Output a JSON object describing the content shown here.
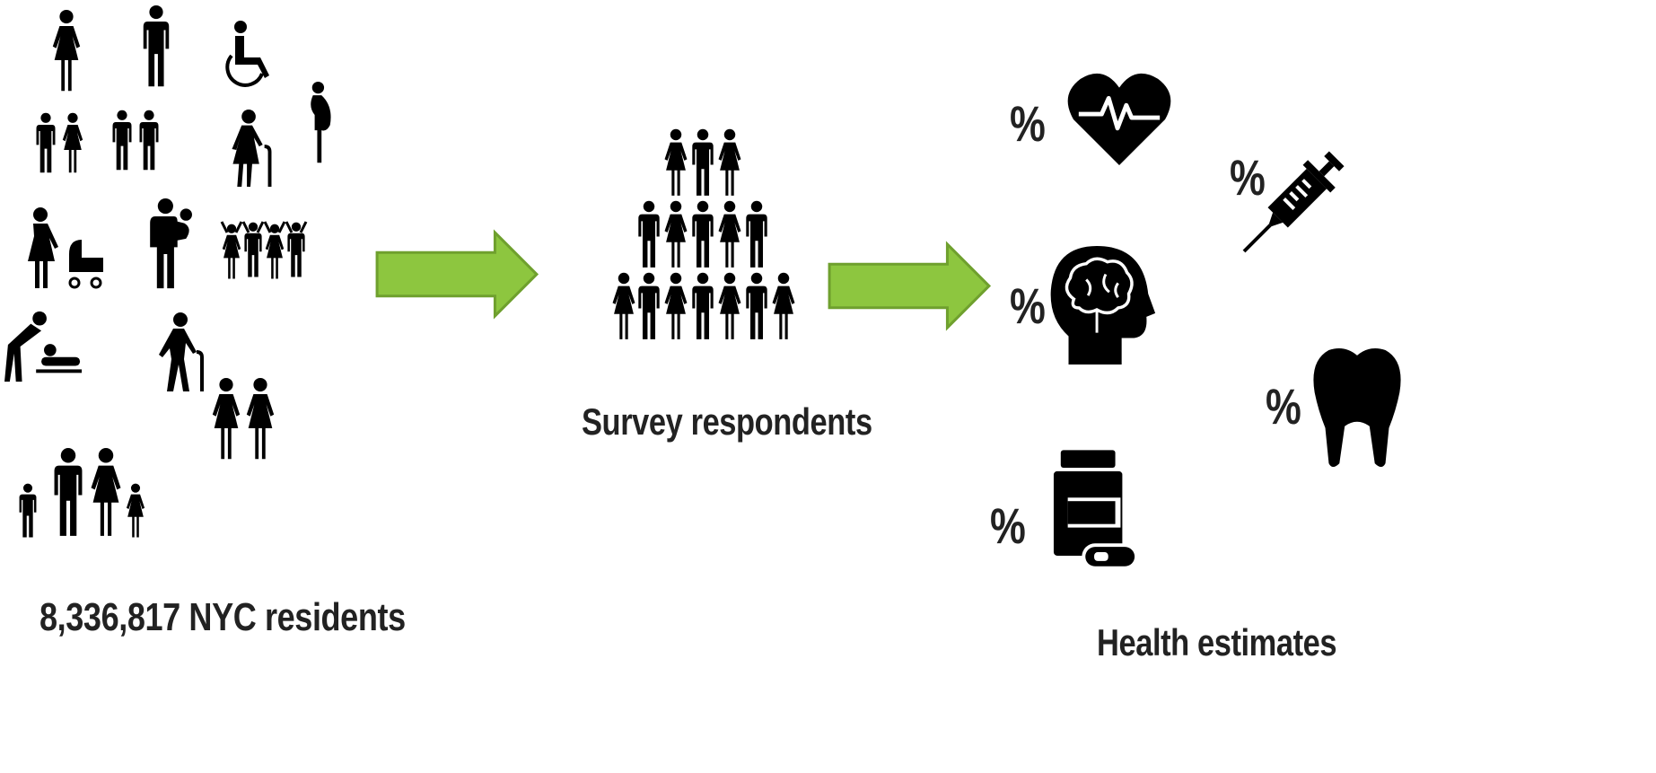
{
  "captions": {
    "residents": "8,336,817 NYC residents",
    "respondents": "Survey respondents",
    "estimates": "Health estimates"
  },
  "percent_symbol": "%",
  "icons": {
    "population": [
      "woman-icon",
      "man-icon",
      "wheelchair-icon",
      "pregnant-woman-icon",
      "couple-icon",
      "two-men-icon",
      "elderly-woman-cane-icon",
      "mother-stroller-icon",
      "father-baby-icon",
      "cheering-group-icon",
      "diaper-changing-icon",
      "elderly-man-cane-icon",
      "two-women-icon",
      "family-icon"
    ],
    "estimates": [
      "heart-pulse-icon",
      "syringe-icon",
      "brain-head-icon",
      "tooth-icon",
      "medicine-bottle-icon"
    ]
  },
  "colors": {
    "arrow_fill": "#8dc63f",
    "arrow_stroke": "#6fa02e",
    "icon": "#000000",
    "text": "#222222"
  }
}
